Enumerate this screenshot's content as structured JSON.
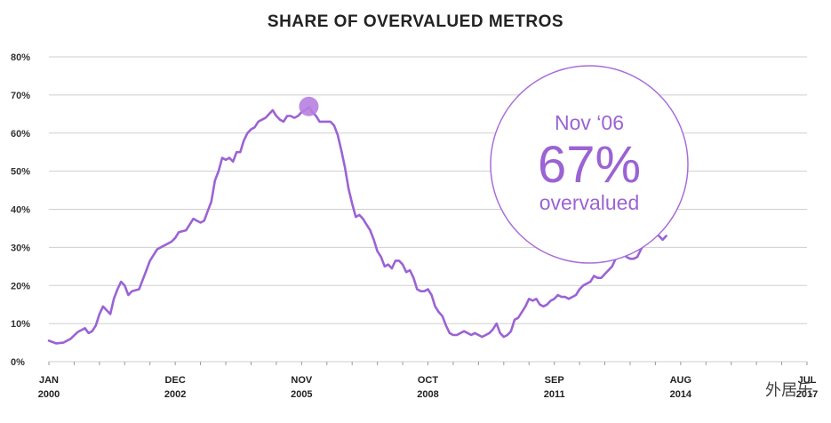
{
  "chart_data": {
    "type": "line",
    "title": "SHARE OF OVERVALUED METROS",
    "xlabel": "",
    "ylabel": "",
    "ylim": [
      0,
      80
    ],
    "y_ticks": [
      "0%",
      "10%",
      "20%",
      "30%",
      "40%",
      "50%",
      "60%",
      "70%",
      "80%"
    ],
    "x_ticks": [
      {
        "top": "JAN",
        "bottom": "2000",
        "t": 0
      },
      {
        "top": "DEC",
        "bottom": "2002",
        "t": 35
      },
      {
        "top": "NOV",
        "bottom": "2005",
        "t": 70
      },
      {
        "top": "OCT",
        "bottom": "2008",
        "t": 105
      },
      {
        "top": "SEP",
        "bottom": "2011",
        "t": 140
      },
      {
        "top": "AUG",
        "bottom": "2014",
        "t": 175
      },
      {
        "top": "JUL",
        "bottom": "2017",
        "t": 210
      }
    ],
    "x_unit": "months since Jan 2000",
    "series": [
      {
        "name": "Share of overvalued metros (%)",
        "color": "#9b63d3",
        "points": [
          [
            0,
            5.5
          ],
          [
            2,
            4.8
          ],
          [
            4,
            5.0
          ],
          [
            6,
            6.0
          ],
          [
            8,
            7.8
          ],
          [
            10,
            8.8
          ],
          [
            11,
            7.5
          ],
          [
            12,
            8.0
          ],
          [
            13,
            9.5
          ],
          [
            14,
            12.5
          ],
          [
            15,
            14.5
          ],
          [
            16,
            13.5
          ],
          [
            17,
            12.5
          ],
          [
            18,
            16.5
          ],
          [
            19,
            19.0
          ],
          [
            20,
            21.0
          ],
          [
            21,
            20.0
          ],
          [
            22,
            17.5
          ],
          [
            23,
            18.5
          ],
          [
            25,
            19.0
          ],
          [
            26,
            21.5
          ],
          [
            27,
            24.0
          ],
          [
            28,
            26.5
          ],
          [
            29,
            28.0
          ],
          [
            30,
            29.5
          ],
          [
            32,
            30.5
          ],
          [
            34,
            31.5
          ],
          [
            35,
            32.5
          ],
          [
            36,
            34.0
          ],
          [
            38,
            34.5
          ],
          [
            40,
            37.5
          ],
          [
            41,
            37.0
          ],
          [
            42,
            36.5
          ],
          [
            43,
            37.0
          ],
          [
            44,
            39.5
          ],
          [
            45,
            42.0
          ],
          [
            46,
            47.5
          ],
          [
            47,
            50.0
          ],
          [
            48,
            53.5
          ],
          [
            49,
            53.0
          ],
          [
            50,
            53.5
          ],
          [
            51,
            52.5
          ],
          [
            52,
            55.0
          ],
          [
            53,
            55.0
          ],
          [
            54,
            58.0
          ],
          [
            55,
            60.0
          ],
          [
            56,
            61.0
          ],
          [
            57,
            61.5
          ],
          [
            58,
            63.0
          ],
          [
            59,
            63.5
          ],
          [
            60,
            64.0
          ],
          [
            61,
            65.0
          ],
          [
            62,
            66.0
          ],
          [
            63,
            64.5
          ],
          [
            64,
            63.5
          ],
          [
            65,
            63.0
          ],
          [
            66,
            64.5
          ],
          [
            67,
            64.5
          ],
          [
            68,
            64.0
          ],
          [
            69,
            64.5
          ],
          [
            70,
            65.5
          ],
          [
            71,
            66.0
          ],
          [
            72,
            66.8
          ],
          [
            73,
            65.5
          ],
          [
            74,
            64.5
          ],
          [
            75,
            63.0
          ],
          [
            76,
            63.0
          ],
          [
            77,
            63.0
          ],
          [
            78,
            63.0
          ],
          [
            79,
            62.0
          ],
          [
            80,
            59.5
          ],
          [
            81,
            55.5
          ],
          [
            82,
            51.0
          ],
          [
            83,
            45.5
          ],
          [
            84,
            41.5
          ],
          [
            85,
            38.0
          ],
          [
            86,
            38.5
          ],
          [
            87,
            37.5
          ],
          [
            88,
            36.0
          ],
          [
            89,
            34.5
          ],
          [
            90,
            32.0
          ],
          [
            91,
            29.0
          ],
          [
            92,
            27.5
          ],
          [
            93,
            25.0
          ],
          [
            94,
            25.5
          ],
          [
            95,
            24.5
          ],
          [
            96,
            26.5
          ],
          [
            97,
            26.5
          ],
          [
            98,
            25.5
          ],
          [
            99,
            23.5
          ],
          [
            100,
            24.0
          ],
          [
            101,
            22.0
          ],
          [
            102,
            19.0
          ],
          [
            103,
            18.5
          ],
          [
            104,
            18.5
          ],
          [
            105,
            19.0
          ],
          [
            106,
            17.5
          ],
          [
            107,
            14.5
          ],
          [
            108,
            13.0
          ],
          [
            109,
            12.0
          ],
          [
            110,
            9.5
          ],
          [
            111,
            7.5
          ],
          [
            112,
            7.0
          ],
          [
            113,
            7.0
          ],
          [
            114,
            7.5
          ],
          [
            115,
            8.0
          ],
          [
            116,
            7.5
          ],
          [
            117,
            7.0
          ],
          [
            118,
            7.5
          ],
          [
            119,
            7.0
          ],
          [
            120,
            6.5
          ],
          [
            121,
            7.0
          ],
          [
            122,
            7.5
          ],
          [
            123,
            8.5
          ],
          [
            124,
            10.0
          ],
          [
            125,
            7.5
          ],
          [
            126,
            6.5
          ],
          [
            127,
            7.0
          ],
          [
            128,
            8.0
          ],
          [
            129,
            11.0
          ],
          [
            130,
            11.5
          ],
          [
            131,
            13.0
          ],
          [
            132,
            14.5
          ],
          [
            133,
            16.5
          ],
          [
            134,
            16.0
          ],
          [
            135,
            16.5
          ],
          [
            136,
            15.0
          ],
          [
            137,
            14.5
          ],
          [
            138,
            15.0
          ],
          [
            139,
            16.0
          ],
          [
            140,
            16.5
          ],
          [
            141,
            17.5
          ],
          [
            142,
            17.0
          ],
          [
            143,
            17.0
          ],
          [
            144,
            16.5
          ],
          [
            145,
            17.0
          ],
          [
            146,
            17.5
          ],
          [
            147,
            19.0
          ],
          [
            148,
            20.0
          ],
          [
            149,
            20.5
          ],
          [
            150,
            21.0
          ],
          [
            151,
            22.5
          ],
          [
            152,
            22.0
          ],
          [
            153,
            22.0
          ],
          [
            154,
            23.0
          ],
          [
            155,
            24.0
          ],
          [
            156,
            25.0
          ],
          [
            157,
            27.0
          ],
          [
            158,
            28.0
          ],
          [
            159,
            28.5
          ],
          [
            160,
            27.5
          ],
          [
            161,
            27.0
          ],
          [
            162,
            27.0
          ],
          [
            163,
            27.5
          ],
          [
            164,
            29.5
          ],
          [
            165,
            31.0
          ],
          [
            166,
            32.5
          ],
          [
            167,
            33.0
          ],
          [
            168,
            33.5
          ],
          [
            169,
            33.0
          ],
          [
            170,
            32.0
          ],
          [
            171,
            33.0
          ]
        ]
      }
    ],
    "highlight": {
      "t": 72,
      "value": 67,
      "color": "#b77fe0"
    },
    "callout": {
      "line1": "Nov ‘06",
      "line2": "67%",
      "line3": "overvalued",
      "color": "#9b63d3"
    },
    "grid": true
  },
  "watermark": "外居乐"
}
